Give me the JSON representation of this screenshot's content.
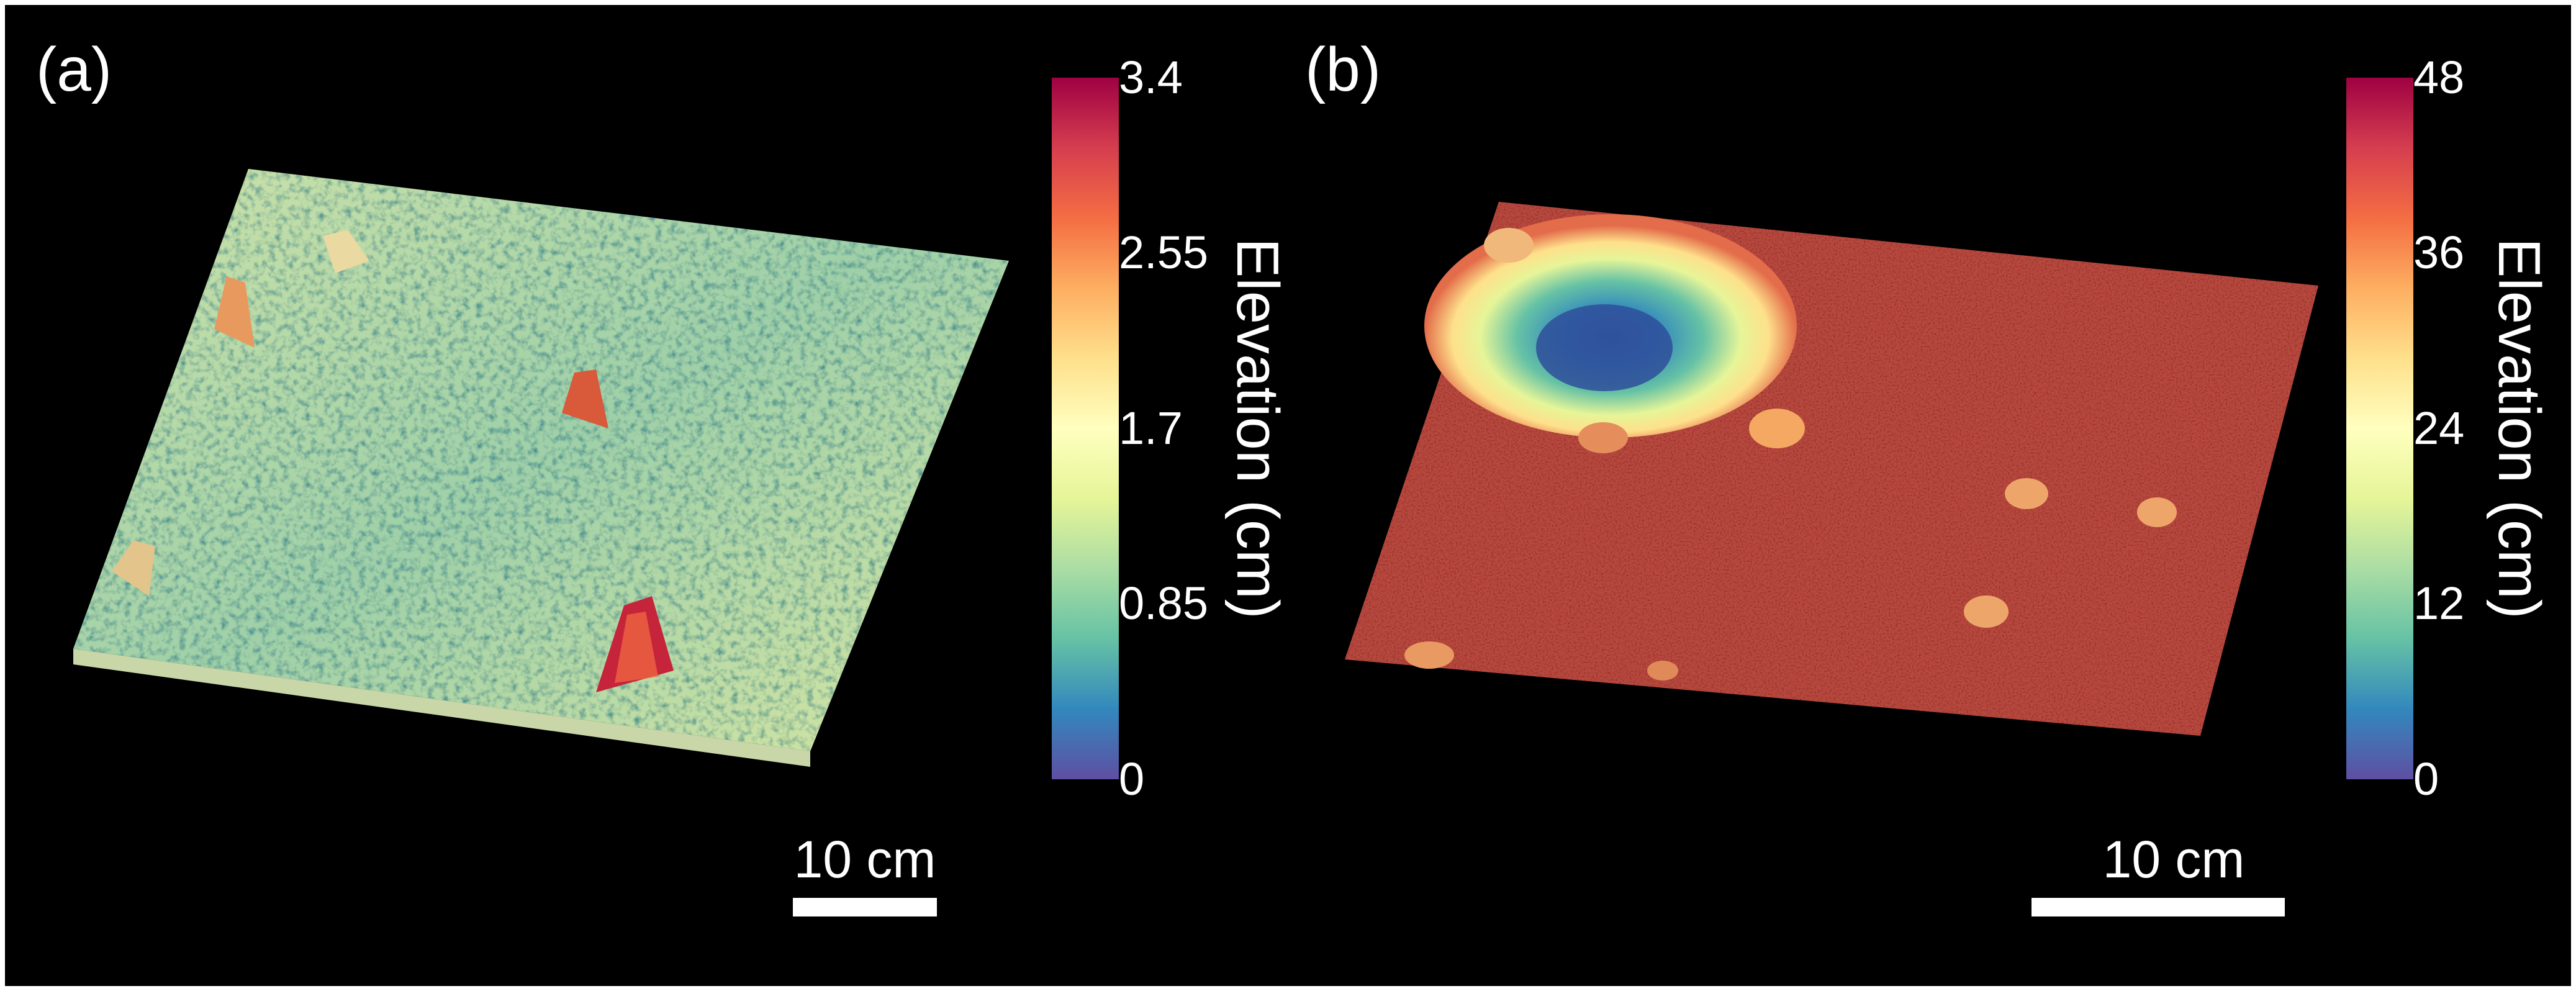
{
  "figure": {
    "panels": [
      {
        "label": "(a)",
        "colorbar": {
          "title": "Elevation (cm)",
          "ticks": [
            "3.4",
            "2.55",
            "1.7",
            "0.85",
            "0"
          ],
          "min": 0,
          "max": 3.4
        },
        "scale_bar": {
          "label": "10 cm",
          "length_cm": 10
        },
        "surface_description": "rough gravel-like terrain"
      },
      {
        "label": "(b)",
        "colorbar": {
          "title": "Elevation (cm)",
          "ticks": [
            "48",
            "36",
            "24",
            "12",
            "0"
          ],
          "min": 0,
          "max": 48
        },
        "scale_bar": {
          "label": "10 cm",
          "length_cm": 10
        },
        "surface_description": "flat surface with a crater"
      }
    ],
    "colormap": [
      "#5e4fa2",
      "#3288bd",
      "#66c2a5",
      "#abdda4",
      "#e6f598",
      "#ffffbf",
      "#fee08b",
      "#fdae61",
      "#f46d43",
      "#d53e4f",
      "#9e0142"
    ]
  }
}
